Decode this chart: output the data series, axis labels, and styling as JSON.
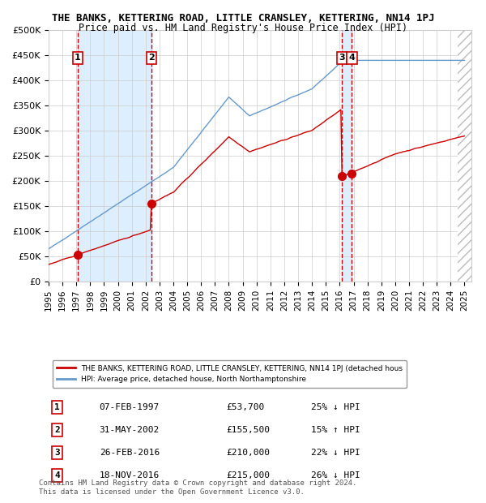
{
  "title": "THE BANKS, KETTERING ROAD, LITTLE CRANSLEY, KETTERING, NN14 1PJ",
  "subtitle": "Price paid vs. HM Land Registry's House Price Index (HPI)",
  "legend_line1": "THE BANKS, KETTERING ROAD, LITTLE CRANSLEY, KETTERING, NN14 1PJ (detached hous",
  "legend_line2": "HPI: Average price, detached house, North Northamptonshire",
  "footer1": "Contains HM Land Registry data © Crown copyright and database right 2024.",
  "footer2": "This data is licensed under the Open Government Licence v3.0.",
  "transactions": [
    {
      "num": "1",
      "date": "07-FEB-1997",
      "price": "£53,700",
      "hpi": "25% ↓ HPI",
      "year": 1997.1
    },
    {
      "num": "2",
      "date": "31-MAY-2002",
      "price": "£155,500",
      "hpi": "15% ↑ HPI",
      "year": 2002.4
    },
    {
      "num": "3",
      "date": "26-FEB-2016",
      "price": "£210,000",
      "hpi": "22% ↓ HPI",
      "year": 2016.15
    },
    {
      "num": "4",
      "date": "18-NOV-2016",
      "price": "£215,000",
      "hpi": "26% ↓ HPI",
      "year": 2016.88
    }
  ],
  "ylim": [
    0,
    500000
  ],
  "yticks": [
    0,
    50000,
    100000,
    150000,
    200000,
    250000,
    300000,
    350000,
    400000,
    450000,
    500000
  ],
  "ytick_labels": [
    "£0",
    "£50K",
    "£100K",
    "£150K",
    "£200K",
    "£250K",
    "£300K",
    "£350K",
    "£400K",
    "£450K",
    "£500K"
  ],
  "xlim": [
    1995,
    2025.5
  ],
  "xticks": [
    1995,
    1996,
    1997,
    1998,
    1999,
    2000,
    2001,
    2002,
    2003,
    2004,
    2005,
    2006,
    2007,
    2008,
    2009,
    2010,
    2011,
    2012,
    2013,
    2014,
    2015,
    2016,
    2017,
    2018,
    2019,
    2020,
    2021,
    2022,
    2023,
    2024,
    2025
  ],
  "hpi_color": "#6699cc",
  "price_color": "#cc0000",
  "transaction_marker_color": "#cc0000",
  "dashed_line_color": "#cc0000",
  "shade_color": "#ddeeff",
  "grid_color": "#cccccc",
  "background_hatch_color": "#dddddd"
}
